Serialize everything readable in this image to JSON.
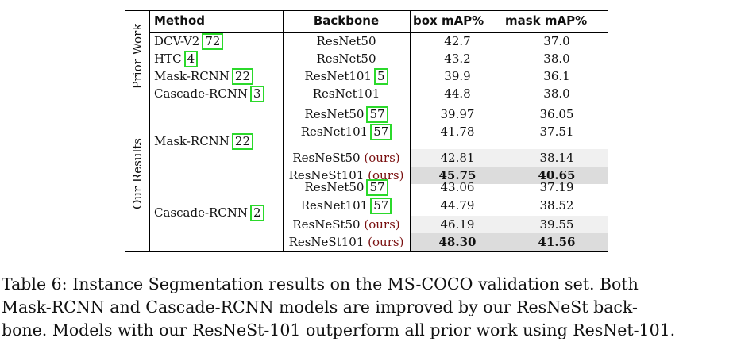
{
  "table": {
    "headers": {
      "method": "Method",
      "backbone": "Backbone",
      "box": "box mAP%",
      "mask": "mask mAP%"
    },
    "groups": {
      "prior": "Prior Work",
      "ours": "Our Results"
    },
    "prior_rows": [
      {
        "method": "DCV-V2",
        "ref": "72",
        "backbone": "ResNet50",
        "backbone_ref": "",
        "box": "42.7",
        "mask": "37.0"
      },
      {
        "method": "HTC",
        "ref": "4",
        "backbone": "ResNet50",
        "backbone_ref": "",
        "box": "43.2",
        "mask": "38.0"
      },
      {
        "method": "Mask-RCNN",
        "ref": "22",
        "backbone": "ResNet101",
        "backbone_ref": "5",
        "box": "39.9",
        "mask": "36.1"
      },
      {
        "method": "Cascade-RCNN",
        "ref": "3",
        "backbone": "ResNet101",
        "backbone_ref": "",
        "box": "44.8",
        "mask": "38.0"
      }
    ],
    "mask_group": {
      "method": "Mask-RCNN",
      "ref": "22",
      "rows": [
        {
          "backbone": "ResNet50",
          "backbone_ref": "57",
          "ours": "",
          "box": "39.97",
          "mask": "36.05"
        },
        {
          "backbone": "ResNet101",
          "backbone_ref": "57",
          "ours": "",
          "box": "41.78",
          "mask": "37.51"
        },
        {
          "backbone": "ResNeSt50",
          "backbone_ref": "",
          "ours": "(ours)",
          "box": "42.81",
          "mask": "38.14"
        },
        {
          "backbone": "ResNeSt101",
          "backbone_ref": "",
          "ours": "(ours)",
          "box": "45.75",
          "mask": "40.65"
        }
      ]
    },
    "cascade_group": {
      "method": "Cascade-RCNN",
      "ref": "2",
      "rows": [
        {
          "backbone": "ResNet50",
          "backbone_ref": "57",
          "ours": "",
          "box": "43.06",
          "mask": "37.19"
        },
        {
          "backbone": "ResNet101",
          "backbone_ref": "57",
          "ours": "",
          "box": "44.79",
          "mask": "38.52"
        },
        {
          "backbone": "ResNeSt50",
          "backbone_ref": "",
          "ours": "(ours)",
          "box": "46.19",
          "mask": "39.55"
        },
        {
          "backbone": "ResNeSt101",
          "backbone_ref": "",
          "ours": "(ours)",
          "box": "48.30",
          "mask": "41.56"
        }
      ]
    }
  },
  "caption": {
    "line1": "Table 6: Instance Segmentation results on the MS-COCO validation set. Both",
    "line2": "Mask-RCNN and Cascade-RCNN models are improved by our ResNeSt back-",
    "line3": "bone. Models with our ResNeSt-101 outperform all prior work using ResNet-101."
  }
}
